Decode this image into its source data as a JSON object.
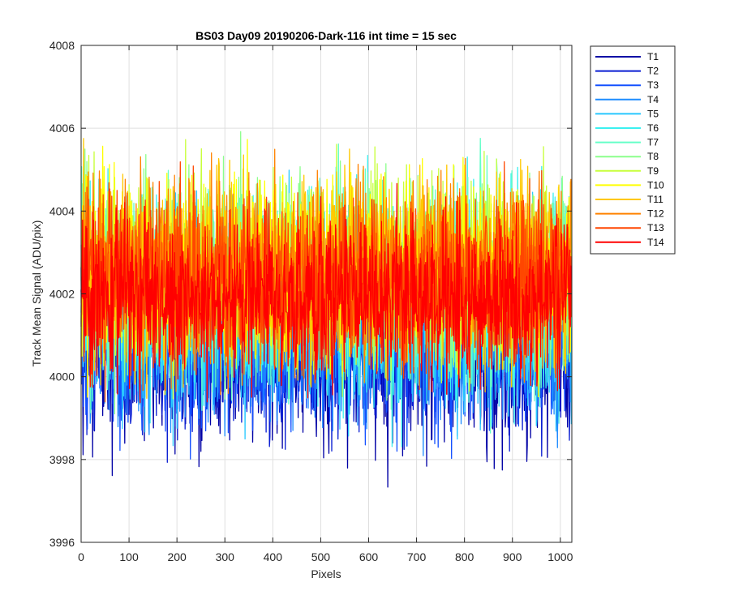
{
  "chart_data": {
    "type": "line",
    "title": "BS03 Day09 20190206-Dark-116 int time = 15 sec",
    "xlabel": "Pixels",
    "ylabel": "Track Mean Signal (ADU/pix)",
    "xlim": [
      0,
      1024
    ],
    "ylim": [
      3996,
      4008
    ],
    "xticks": [
      0,
      100,
      200,
      300,
      400,
      500,
      600,
      700,
      800,
      900,
      1000
    ],
    "yticks": [
      3996,
      3998,
      4000,
      4002,
      4004,
      4006,
      4008
    ],
    "grid": true,
    "legend_position": "outside-top-right",
    "n_points": 1024,
    "series": [
      {
        "name": "T1",
        "color": "#0000a5",
        "mean": 4000.6,
        "amplitude": 1.05
      },
      {
        "name": "T2",
        "color": "#0a1ed2",
        "mean": 4000.7,
        "amplitude": 1.0
      },
      {
        "name": "T3",
        "color": "#1450ff",
        "mean": 4000.9,
        "amplitude": 1.0
      },
      {
        "name": "T4",
        "color": "#1e8cff",
        "mean": 4001.2,
        "amplitude": 1.05
      },
      {
        "name": "T5",
        "color": "#28c8ff",
        "mean": 4001.5,
        "amplitude": 1.1
      },
      {
        "name": "T6",
        "color": "#3cf0f0",
        "mean": 4002.0,
        "amplitude": 1.2
      },
      {
        "name": "T7",
        "color": "#64ffc8",
        "mean": 4002.2,
        "amplitude": 1.15
      },
      {
        "name": "T8",
        "color": "#8cff8c",
        "mean": 4002.4,
        "amplitude": 1.15
      },
      {
        "name": "T9",
        "color": "#c8ff3c",
        "mean": 4002.5,
        "amplitude": 1.15
      },
      {
        "name": "T10",
        "color": "#ffff00",
        "mean": 4002.6,
        "amplitude": 1.1
      },
      {
        "name": "T11",
        "color": "#ffc800",
        "mean": 4002.6,
        "amplitude": 1.1
      },
      {
        "name": "T12",
        "color": "#ff8200",
        "mean": 4002.5,
        "amplitude": 1.1
      },
      {
        "name": "T13",
        "color": "#ff4600",
        "mean": 4002.3,
        "amplitude": 1.05
      },
      {
        "name": "T14",
        "color": "#ff0000",
        "mean": 4001.9,
        "amplitude": 0.95
      }
    ]
  }
}
